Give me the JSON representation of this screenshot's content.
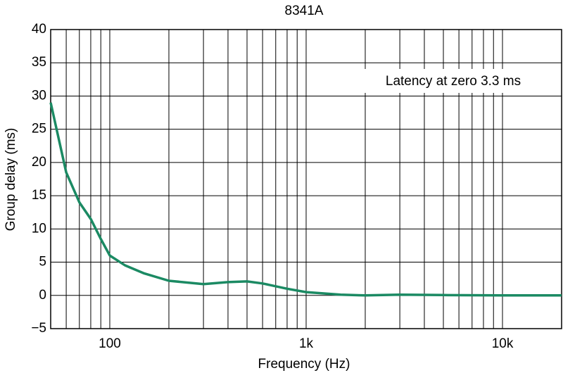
{
  "chart_data": {
    "type": "line",
    "title": "8341A",
    "x_label": "Frequency (Hz)",
    "y_label": "Group delay (ms)",
    "annotation": "Latency at zero 3.3 ms",
    "x_scale": "log",
    "xlim": [
      50,
      20000
    ],
    "xticks": [
      {
        "value": 100,
        "label": "100"
      },
      {
        "value": 1000,
        "label": "1k"
      },
      {
        "value": 10000,
        "label": "10k"
      }
    ],
    "x_grid": [
      50,
      60,
      70,
      80,
      90,
      100,
      200,
      300,
      400,
      500,
      600,
      700,
      800,
      900,
      1000,
      2000,
      3000,
      4000,
      5000,
      6000,
      7000,
      8000,
      9000,
      10000,
      20000
    ],
    "ylim": [
      -5,
      40
    ],
    "yticks": [
      {
        "value": -5,
        "label": "−5"
      },
      0,
      5,
      10,
      15,
      20,
      25,
      30,
      35,
      40
    ],
    "grid": true,
    "series": [
      {
        "color": "#1b8a63",
        "x": [
          50,
          60,
          70,
          80,
          90,
          100,
          120,
          150,
          200,
          300,
          400,
          500,
          600,
          800,
          1000,
          1500,
          2000,
          3000,
          5000,
          10000,
          20000
        ],
        "values": [
          29,
          18.5,
          14,
          11.5,
          8.5,
          6,
          4.5,
          3.3,
          2.2,
          1.7,
          2.0,
          2.1,
          1.8,
          1.0,
          0.5,
          0.1,
          0,
          0.1,
          0.05,
          0,
          0
        ]
      }
    ]
  }
}
